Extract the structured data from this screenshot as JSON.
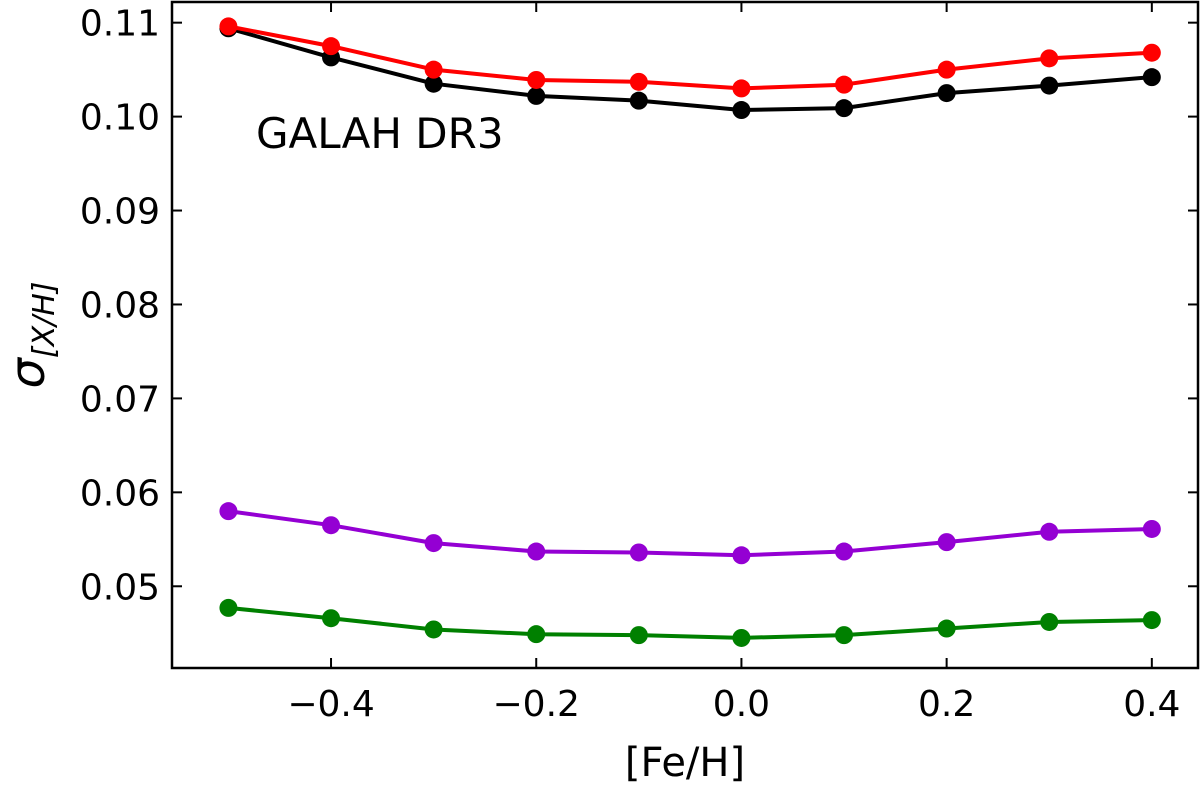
{
  "chart_data": {
    "type": "line",
    "title": "",
    "annotation": "GALAH DR3",
    "xlabel": "[Fe/H]",
    "ylabel_base": "σ",
    "ylabel_sub": "[X/H]",
    "xlim": [
      -0.555,
      0.445
    ],
    "ylim": [
      0.0413,
      0.1122
    ],
    "x": [
      -0.5,
      -0.4,
      -0.3,
      -0.2,
      -0.1,
      0.0,
      0.1,
      0.2,
      0.3,
      0.4
    ],
    "xticks": [
      -0.4,
      -0.2,
      0.0,
      0.2,
      0.4
    ],
    "xtick_labels": [
      "−0.4",
      "−0.2",
      "0.0",
      "0.2",
      "0.4"
    ],
    "yticks": [
      0.05,
      0.06,
      0.07,
      0.08,
      0.09,
      0.1,
      0.11
    ],
    "ytick_labels": [
      "0.05",
      "0.06",
      "0.07",
      "0.08",
      "0.09",
      "0.10",
      "0.11"
    ],
    "grid": false,
    "series": [
      {
        "name": "black",
        "color": "#000000",
        "values": [
          0.1094,
          0.1063,
          0.1035,
          0.1022,
          0.1017,
          0.1007,
          0.1009,
          0.1025,
          0.1033,
          0.1042
        ]
      },
      {
        "name": "red",
        "color": "#ff0000",
        "values": [
          0.1096,
          0.1075,
          0.105,
          0.1039,
          0.1037,
          0.103,
          0.1034,
          0.105,
          0.1062,
          0.1068
        ]
      },
      {
        "name": "purple",
        "color": "#9400d3",
        "values": [
          0.058,
          0.0565,
          0.0546,
          0.0537,
          0.0536,
          0.0533,
          0.0537,
          0.0547,
          0.0558,
          0.0561
        ]
      },
      {
        "name": "green",
        "color": "#008000",
        "values": [
          0.0477,
          0.0466,
          0.0454,
          0.0449,
          0.0448,
          0.0445,
          0.0448,
          0.0455,
          0.0462,
          0.0464
        ]
      }
    ]
  }
}
